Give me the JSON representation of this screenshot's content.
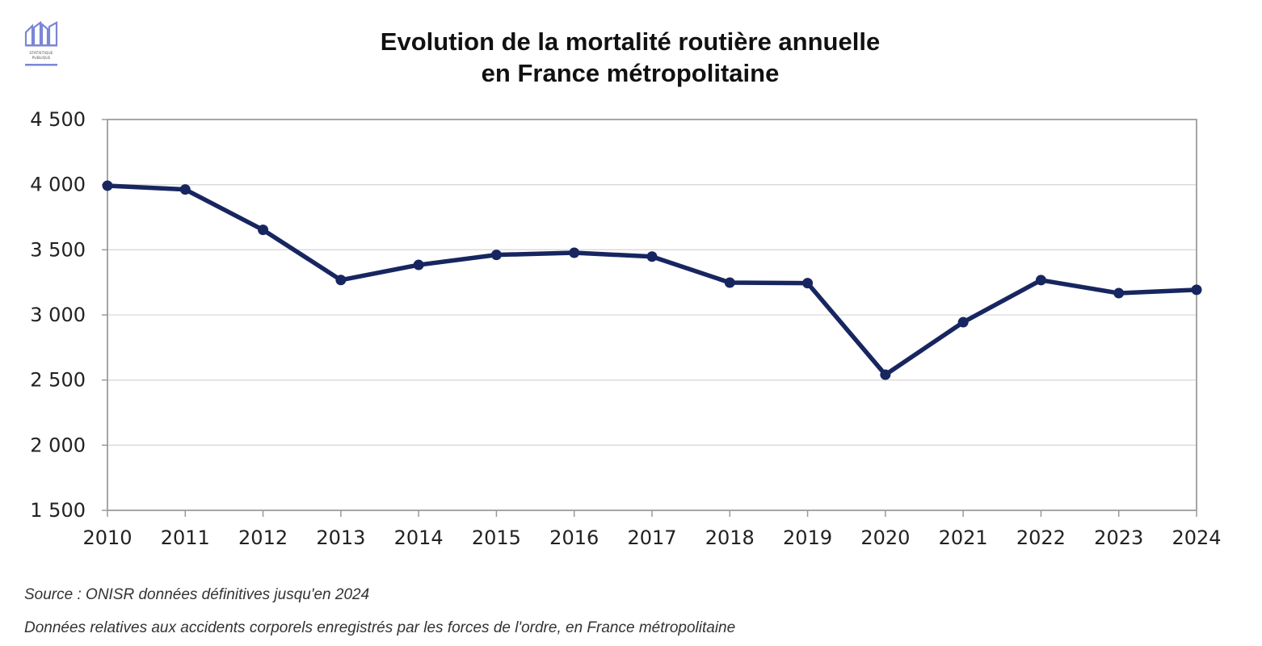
{
  "logo": {
    "icon": "statistique-publique-logo",
    "text": "STATISTIQUE PUBLIQUE",
    "color": "#7b86d6"
  },
  "chart_data": {
    "type": "line",
    "title": [
      "Evolution de la mortalité routière annuelle",
      "en France métropolitaine"
    ],
    "x": [
      "2010",
      "2011",
      "2012",
      "2013",
      "2014",
      "2015",
      "2016",
      "2017",
      "2018",
      "2019",
      "2020",
      "2021",
      "2022",
      "2023",
      "2024"
    ],
    "series": [
      {
        "name": "Mortalité routière",
        "values": [
          3992,
          3963,
          3653,
          3268,
          3384,
          3461,
          3477,
          3448,
          3248,
          3244,
          2541,
          2944,
          3267,
          3167,
          3193
        ],
        "color": "#172660"
      }
    ],
    "ylim": [
      1500,
      4500
    ],
    "yticks": [
      1500,
      2000,
      2500,
      3000,
      3500,
      4000,
      4500
    ],
    "ytick_labels": [
      "1 500",
      "2 000",
      "2 500",
      "3 000",
      "3 500",
      "4 000",
      "4 500"
    ],
    "xlabel": "",
    "ylabel": "",
    "grid": true
  },
  "footer": {
    "source": "Source : ONISR données définitives jusqu'en 2024",
    "note": "Données relatives aux accidents corporels enregistrés par les forces de l'ordre, en France métropolitaine"
  }
}
